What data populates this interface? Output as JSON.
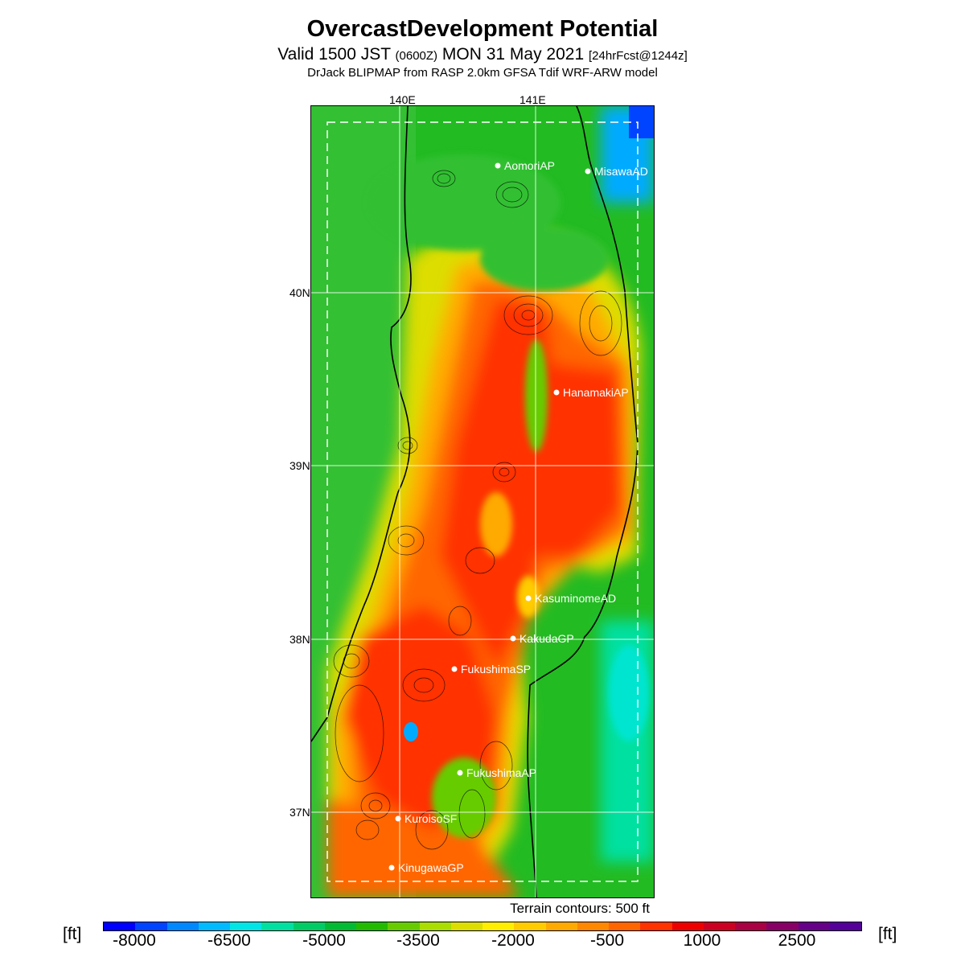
{
  "header": {
    "title": "OvercastDevelopment Potential",
    "valid_prefix": "Valid 1500 JST",
    "valid_utc": "(0600Z)",
    "valid_date": "MON 31 May 2021",
    "forecast_tag": "[24hrFcst@1244z]",
    "model_line": "DrJack BLIPMAP from RASP 2.0km GFSA Tdif WRF-ARW model"
  },
  "map": {
    "lon_labels": [
      "140E",
      "141E"
    ],
    "lat_labels": [
      "40N",
      "39N",
      "38N",
      "37N"
    ],
    "stations": [
      "AomoriAP",
      "MisawaAD",
      "HanamakiAP",
      "KasuminomeAD",
      "KakudaGP",
      "FukushimaSP",
      "FukushimaAP",
      "KuroisoSF",
      "KinugawaGP"
    ],
    "terrain_note": "Terrain contours: 500 ft"
  },
  "colorbar": {
    "unit": "[ft]",
    "tick_labels": [
      "-8000",
      "-6500",
      "-5000",
      "-3500",
      "-2000",
      "-500",
      "1000",
      "2500"
    ],
    "colors": [
      "#0000ff",
      "#0044ff",
      "#0088ff",
      "#00bbff",
      "#00e5e5",
      "#00e0a0",
      "#00cc66",
      "#00bb33",
      "#22bb00",
      "#66cc00",
      "#aadd00",
      "#dddd00",
      "#ffee00",
      "#ffcc00",
      "#ffaa00",
      "#ff8800",
      "#ff6600",
      "#ff3300",
      "#ee0000",
      "#cc0022",
      "#aa0044",
      "#880066",
      "#660088",
      "#550099"
    ]
  }
}
